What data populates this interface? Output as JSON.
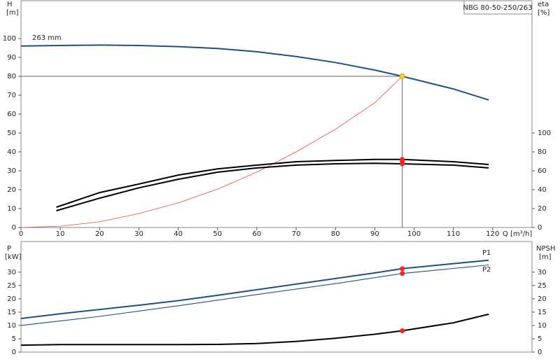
{
  "chart_data": [
    {
      "type": "line",
      "title": "NBG 80-50-250/263",
      "y_label": "H",
      "y_unit": "[m]",
      "y2_label": "eta",
      "y2_unit": "[%]",
      "x_label": "Q [m³/h]",
      "xlim": [
        0,
        130
      ],
      "xticks": [
        0,
        10,
        20,
        30,
        40,
        50,
        60,
        70,
        80,
        90,
        100,
        110,
        120
      ],
      "ylim": [
        0,
        120
      ],
      "yticks": [
        0,
        10,
        20,
        30,
        40,
        50,
        60,
        70,
        80,
        90,
        100
      ],
      "y2lim": [
        0,
        240
      ],
      "y2ticks": [
        0,
        20,
        40,
        60,
        80,
        100
      ],
      "series": [
        {
          "name": "263 mm",
          "color": "#1f4e8c",
          "width": 2,
          "x": [
            0,
            10,
            20,
            30,
            40,
            50,
            60,
            70,
            80,
            90,
            97,
            110,
            119
          ],
          "values": [
            96,
            96.3,
            96.5,
            96.3,
            95.7,
            94.7,
            93,
            90.5,
            87.3,
            83.3,
            80,
            73.3,
            67.5
          ]
        },
        {
          "color": "#ff4040",
          "width": 0.8,
          "x": [
            0,
            10,
            20,
            30,
            40,
            50,
            60,
            70,
            80,
            90,
            97
          ],
          "values": [
            0,
            0.7,
            3,
            7.4,
            13,
            20.3,
            29.3,
            40,
            52,
            66,
            80
          ]
        },
        {
          "color": "#000000",
          "width": 2,
          "axis": "y2",
          "x": [
            9,
            20,
            30,
            40,
            50,
            60,
            70,
            80,
            90,
            97,
            110,
            119
          ],
          "values": [
            21.5,
            37,
            46,
            55.5,
            62,
            66,
            69.6,
            71,
            72,
            72,
            69.6,
            66.7
          ]
        },
        {
          "color": "#000000",
          "width": 2,
          "axis": "y2",
          "x": [
            9,
            20,
            30,
            40,
            50,
            60,
            70,
            80,
            90,
            97,
            110,
            119
          ],
          "values": [
            17.8,
            31,
            42,
            51,
            58.5,
            63,
            66,
            67.4,
            68,
            67.4,
            66,
            63
          ]
        }
      ],
      "points": [
        {
          "x": 97,
          "y": 80,
          "color": "#ffd21f",
          "crosshair": true
        },
        {
          "x": 97,
          "y": 72,
          "color": "#ff2020",
          "axis": "y2"
        },
        {
          "x": 97,
          "y": 69.6,
          "color": "#ff2020",
          "axis": "y2"
        },
        {
          "x": 97,
          "y": 67.4,
          "color": "#ff2020",
          "axis": "y2"
        }
      ]
    },
    {
      "type": "line",
      "y_label": "P",
      "y_unit": "[kW]",
      "y2_label": "NPSH",
      "y2_unit": "[m]",
      "xlim": [
        0,
        130
      ],
      "ylim": [
        0,
        41.5
      ],
      "yticks": [
        0,
        5,
        10,
        15,
        20,
        25,
        30
      ],
      "y2lim": [
        0,
        41.5
      ],
      "y2ticks": [
        0,
        5,
        10,
        15,
        20,
        25,
        30
      ],
      "series": [
        {
          "name": "P1",
          "color": "#1f4e8c",
          "width": 2,
          "x": [
            0,
            10,
            20,
            30,
            40,
            50,
            60,
            70,
            80,
            90,
            97,
            110,
            119
          ],
          "values": [
            12.6,
            14.4,
            16,
            17.6,
            19.3,
            21.3,
            23.4,
            25.5,
            27.6,
            29.7,
            31.3,
            33.2,
            34.5
          ]
        },
        {
          "name": "P2",
          "color": "#1f4e8c",
          "width": 1.1,
          "x": [
            0,
            20,
            40,
            60,
            80,
            97,
            119
          ],
          "values": [
            10,
            13.4,
            17.4,
            21.6,
            25.7,
            29.5,
            32.7
          ]
        },
        {
          "color": "#000000",
          "width": 2,
          "axis": "y2",
          "x": [
            0,
            10,
            40,
            50,
            60,
            70,
            80,
            90,
            97,
            110,
            119
          ],
          "values": [
            2.6,
            2.8,
            2.8,
            2.9,
            3.2,
            4,
            5.2,
            6.7,
            8,
            11,
            14.2
          ]
        }
      ],
      "points": [
        {
          "x": 97,
          "y": 31.3,
          "color": "#ff2020"
        },
        {
          "x": 97,
          "y": 29.5,
          "color": "#ff2020"
        },
        {
          "x": 97,
          "y": 8,
          "color": "#ff2020",
          "axis": "y2"
        }
      ]
    }
  ]
}
